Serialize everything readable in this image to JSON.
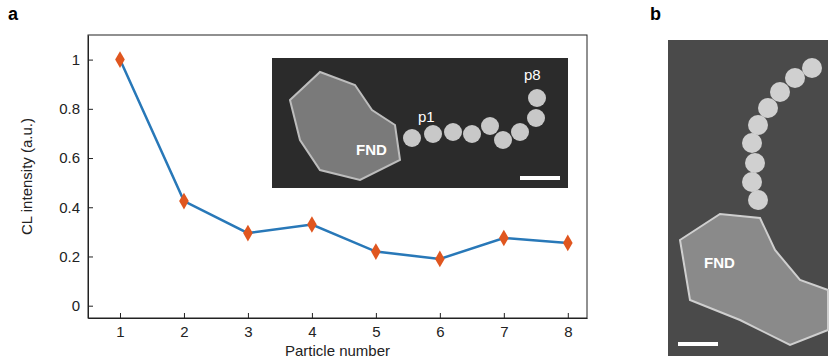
{
  "chart_data": {
    "type": "line",
    "x_label": "Particle number",
    "y_label": "CL intensity (a.u.)",
    "x": [
      1,
      2,
      3,
      4,
      5,
      6,
      7,
      8
    ],
    "values": [
      1,
      0.425,
      0.295,
      0.33,
      0.22,
      0.19,
      0.275,
      0.255
    ],
    "color": "#2878b8",
    "marker": "diamond",
    "line_style": "solid",
    "xlim": [
      0.5,
      8.3
    ],
    "xticks": [
      1,
      2,
      3,
      4,
      5,
      6,
      7,
      8
    ],
    "ylim": [
      -0.05,
      1.1
    ],
    "yticks": [
      0,
      0.2,
      0.4,
      0.6,
      0.8,
      1
    ],
    "grid": false
  },
  "figure": {
    "panel_labels": [
      "a",
      "b"
    ],
    "inset_labels": [
      "FND",
      "p1",
      "p8"
    ],
    "panel_b_labels": [
      "FND"
    ]
  }
}
